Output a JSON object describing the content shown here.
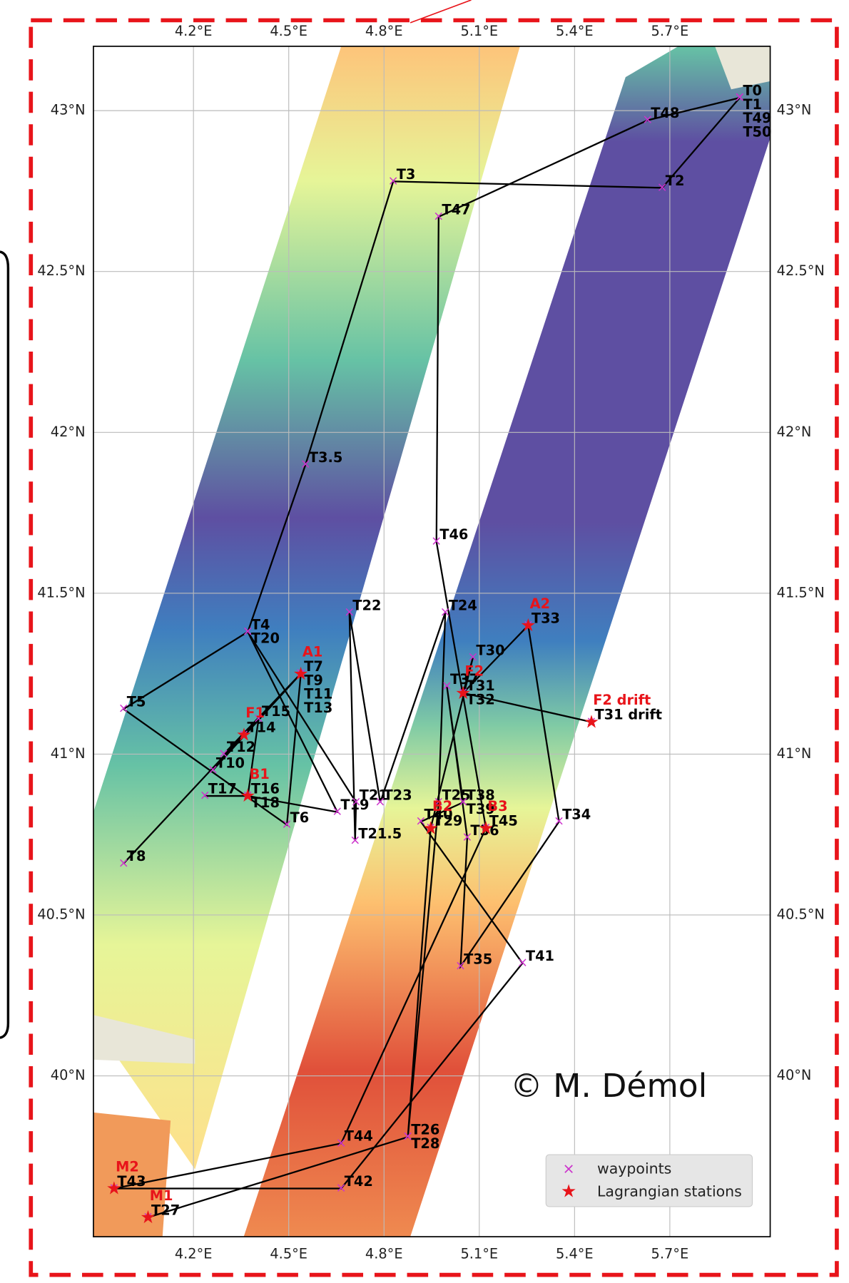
{
  "map": {
    "xlim": [
      3.885,
      6.016
    ],
    "ylim": [
      39.5,
      43.2
    ],
    "xticks": [
      {
        "value": 4.2,
        "label": "4.2°E"
      },
      {
        "value": 4.5,
        "label": "4.5°E"
      },
      {
        "value": 4.8,
        "label": "4.8°E"
      },
      {
        "value": 5.1,
        "label": "5.1°E"
      },
      {
        "value": 5.4,
        "label": "5.4°E"
      },
      {
        "value": 5.7,
        "label": "5.7°E"
      }
    ],
    "yticks": [
      {
        "value": 40,
        "label": "40°N"
      },
      {
        "value": 40.5,
        "label": "40.5°N"
      },
      {
        "value": 41,
        "label": "41°N"
      },
      {
        "value": 41.5,
        "label": "41.5°N"
      },
      {
        "value": 42,
        "label": "42°N"
      },
      {
        "value": 42.5,
        "label": "42.5°N"
      },
      {
        "value": 43,
        "label": "43°N"
      }
    ],
    "grid": true,
    "waypoint_color": "#cc33cc",
    "station_color": "#e8141a",
    "track_color": "#000000",
    "waypoints": [
      {
        "name": "T0",
        "lon": 5.92,
        "lat": 43.04
      },
      {
        "name": "T1",
        "lon": 5.92,
        "lat": 43.04
      },
      {
        "name": "T2",
        "lon": 5.676,
        "lat": 42.76
      },
      {
        "name": "T3",
        "lon": 4.829,
        "lat": 42.78
      },
      {
        "name": "T3.5",
        "lon": 4.553,
        "lat": 41.9
      },
      {
        "name": "T4",
        "lon": 4.371,
        "lat": 41.38
      },
      {
        "name": "T5",
        "lon": 3.98,
        "lat": 41.14
      },
      {
        "name": "T6",
        "lon": 4.494,
        "lat": 40.78
      },
      {
        "name": "T7",
        "lon": 4.538,
        "lat": 41.25
      },
      {
        "name": "T8",
        "lon": 3.98,
        "lat": 40.66
      },
      {
        "name": "T9",
        "lon": 4.538,
        "lat": 41.25
      },
      {
        "name": "T10",
        "lon": 4.261,
        "lat": 40.95
      },
      {
        "name": "T11",
        "lon": 4.538,
        "lat": 41.25
      },
      {
        "name": "T12",
        "lon": 4.295,
        "lat": 41.0
      },
      {
        "name": "T13",
        "lon": 4.538,
        "lat": 41.25
      },
      {
        "name": "T14",
        "lon": 4.359,
        "lat": 41.06
      },
      {
        "name": "T15",
        "lon": 4.405,
        "lat": 41.11
      },
      {
        "name": "T16",
        "lon": 4.371,
        "lat": 40.87
      },
      {
        "name": "T17",
        "lon": 4.236,
        "lat": 40.87
      },
      {
        "name": "T18",
        "lon": 4.371,
        "lat": 40.87
      },
      {
        "name": "T19",
        "lon": 4.653,
        "lat": 40.82
      },
      {
        "name": "T20",
        "lon": 4.371,
        "lat": 41.38
      },
      {
        "name": "T21",
        "lon": 4.712,
        "lat": 40.85
      },
      {
        "name": "T21.5",
        "lon": 4.709,
        "lat": 40.73
      },
      {
        "name": "T22",
        "lon": 4.691,
        "lat": 41.44
      },
      {
        "name": "T23",
        "lon": 4.788,
        "lat": 40.85
      },
      {
        "name": "T24",
        "lon": 4.993,
        "lat": 41.44
      },
      {
        "name": "T25",
        "lon": 4.972,
        "lat": 40.85
      },
      {
        "name": "T26",
        "lon": 4.875,
        "lat": 39.81
      },
      {
        "name": "T27",
        "lon": 4.057,
        "lat": 39.56
      },
      {
        "name": "T28",
        "lon": 4.875,
        "lat": 39.81
      },
      {
        "name": "T29",
        "lon": 4.947,
        "lat": 40.77
      },
      {
        "name": "T30",
        "lon": 5.08,
        "lat": 41.3
      },
      {
        "name": "T31",
        "lon": 5.049,
        "lat": 41.19
      },
      {
        "name": "T31 drift",
        "lon": 5.453,
        "lat": 41.1
      },
      {
        "name": "T32",
        "lon": 5.049,
        "lat": 41.19
      },
      {
        "name": "T33",
        "lon": 5.254,
        "lat": 41.4
      },
      {
        "name": "T34",
        "lon": 5.351,
        "lat": 40.79
      },
      {
        "name": "T35",
        "lon": 5.041,
        "lat": 40.34
      },
      {
        "name": "T36",
        "lon": 5.062,
        "lat": 40.74
      },
      {
        "name": "T37",
        "lon": 4.998,
        "lat": 41.21
      },
      {
        "name": "T38",
        "lon": 5.049,
        "lat": 40.85
      },
      {
        "name": "T39",
        "lon": 5.049,
        "lat": 40.85
      },
      {
        "name": "T40",
        "lon": 4.916,
        "lat": 40.79
      },
      {
        "name": "T41",
        "lon": 5.236,
        "lat": 40.35
      },
      {
        "name": "T42",
        "lon": 4.665,
        "lat": 39.65
      },
      {
        "name": "T43",
        "lon": 3.95,
        "lat": 39.65
      },
      {
        "name": "T44",
        "lon": 4.665,
        "lat": 39.79
      },
      {
        "name": "T45",
        "lon": 5.121,
        "lat": 40.77
      },
      {
        "name": "T46",
        "lon": 4.965,
        "lat": 41.66
      },
      {
        "name": "T47",
        "lon": 4.972,
        "lat": 42.67
      },
      {
        "name": "T48",
        "lon": 5.63,
        "lat": 42.97
      },
      {
        "name": "T49",
        "lon": 5.92,
        "lat": 43.04
      },
      {
        "name": "T50",
        "lon": 5.92,
        "lat": 43.04
      }
    ],
    "stations": [
      {
        "name": "A1",
        "lon": 4.538,
        "lat": 41.25
      },
      {
        "name": "A2",
        "lon": 5.254,
        "lat": 41.4
      },
      {
        "name": "B1",
        "lon": 4.371,
        "lat": 40.87
      },
      {
        "name": "B2",
        "lon": 4.947,
        "lat": 40.77
      },
      {
        "name": "B3",
        "lon": 5.121,
        "lat": 40.77
      },
      {
        "name": "F1",
        "lon": 4.359,
        "lat": 41.06
      },
      {
        "name": "F2",
        "lon": 5.049,
        "lat": 41.19
      },
      {
        "name": "F2 drift",
        "lon": 5.453,
        "lat": 41.1
      },
      {
        "name": "M1",
        "lon": 4.057,
        "lat": 39.56
      },
      {
        "name": "M2",
        "lon": 3.95,
        "lat": 39.65
      }
    ],
    "legend": {
      "waypoints": "waypoints",
      "stations": "Lagrangian stations"
    },
    "credit": "© M. Démol"
  }
}
